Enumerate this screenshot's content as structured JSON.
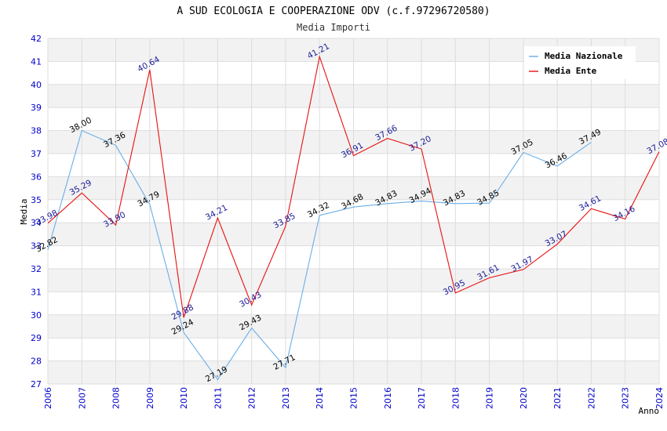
{
  "chart_data": {
    "type": "line",
    "title": "A SUD ECOLOGIA E COOPERAZIONE ODV (c.f.97296720580)",
    "subtitle": "Media Importi",
    "xlabel": "Anno",
    "ylabel": "Media",
    "ylim": [
      27,
      42
    ],
    "yticks": [
      "27",
      "28",
      "29",
      "30",
      "31",
      "32",
      "33",
      "34",
      "35",
      "36",
      "37",
      "38",
      "39",
      "40",
      "41",
      "42"
    ],
    "categories": [
      "2006",
      "2007",
      "2008",
      "2009",
      "2010",
      "2011",
      "2012",
      "2013",
      "2014",
      "2015",
      "2016",
      "2017",
      "2018",
      "2019",
      "2020",
      "2021",
      "2022",
      "2023",
      "2024"
    ],
    "legend_position": "top-right",
    "series": [
      {
        "name": "Media Nazionale",
        "color": "#6aaee8",
        "label_color": "#000000",
        "values": [
          32.82,
          38.0,
          37.36,
          34.79,
          29.24,
          27.19,
          29.43,
          27.71,
          34.32,
          34.68,
          34.83,
          34.94,
          34.83,
          34.85,
          37.05,
          36.46,
          37.49,
          null,
          null
        ],
        "labels": [
          "32.82",
          "38.00",
          "37.36",
          "34.79",
          "29.24",
          "27.19",
          "29.43",
          "27.71",
          "34.32",
          "34.68",
          "34.83",
          "34.94",
          "34.83",
          "34.85",
          "37.05",
          "36.46",
          "37.49",
          null,
          null
        ]
      },
      {
        "name": "Media Ente",
        "color": "#e81010",
        "label_color": "#1a1a99",
        "values": [
          33.98,
          35.29,
          33.9,
          40.64,
          29.88,
          34.21,
          30.43,
          33.85,
          41.21,
          36.91,
          37.66,
          37.2,
          30.95,
          31.61,
          31.97,
          33.07,
          34.61,
          34.16,
          37.08
        ],
        "labels": [
          "33.98",
          "35.29",
          "33.90",
          "40.64",
          "29.88",
          "34.21",
          "30.43",
          "33.85",
          "41.21",
          "36.91",
          "37.66",
          "37.20",
          "30.95",
          "31.61",
          "31.97",
          "33.07",
          "34.61",
          "34.16",
          "37.08"
        ]
      }
    ],
    "colors": {
      "tick_x": "#0000cc",
      "tick_y": "#0000cc",
      "band": "#f2f2f2",
      "grid": "#dddddd"
    }
  }
}
